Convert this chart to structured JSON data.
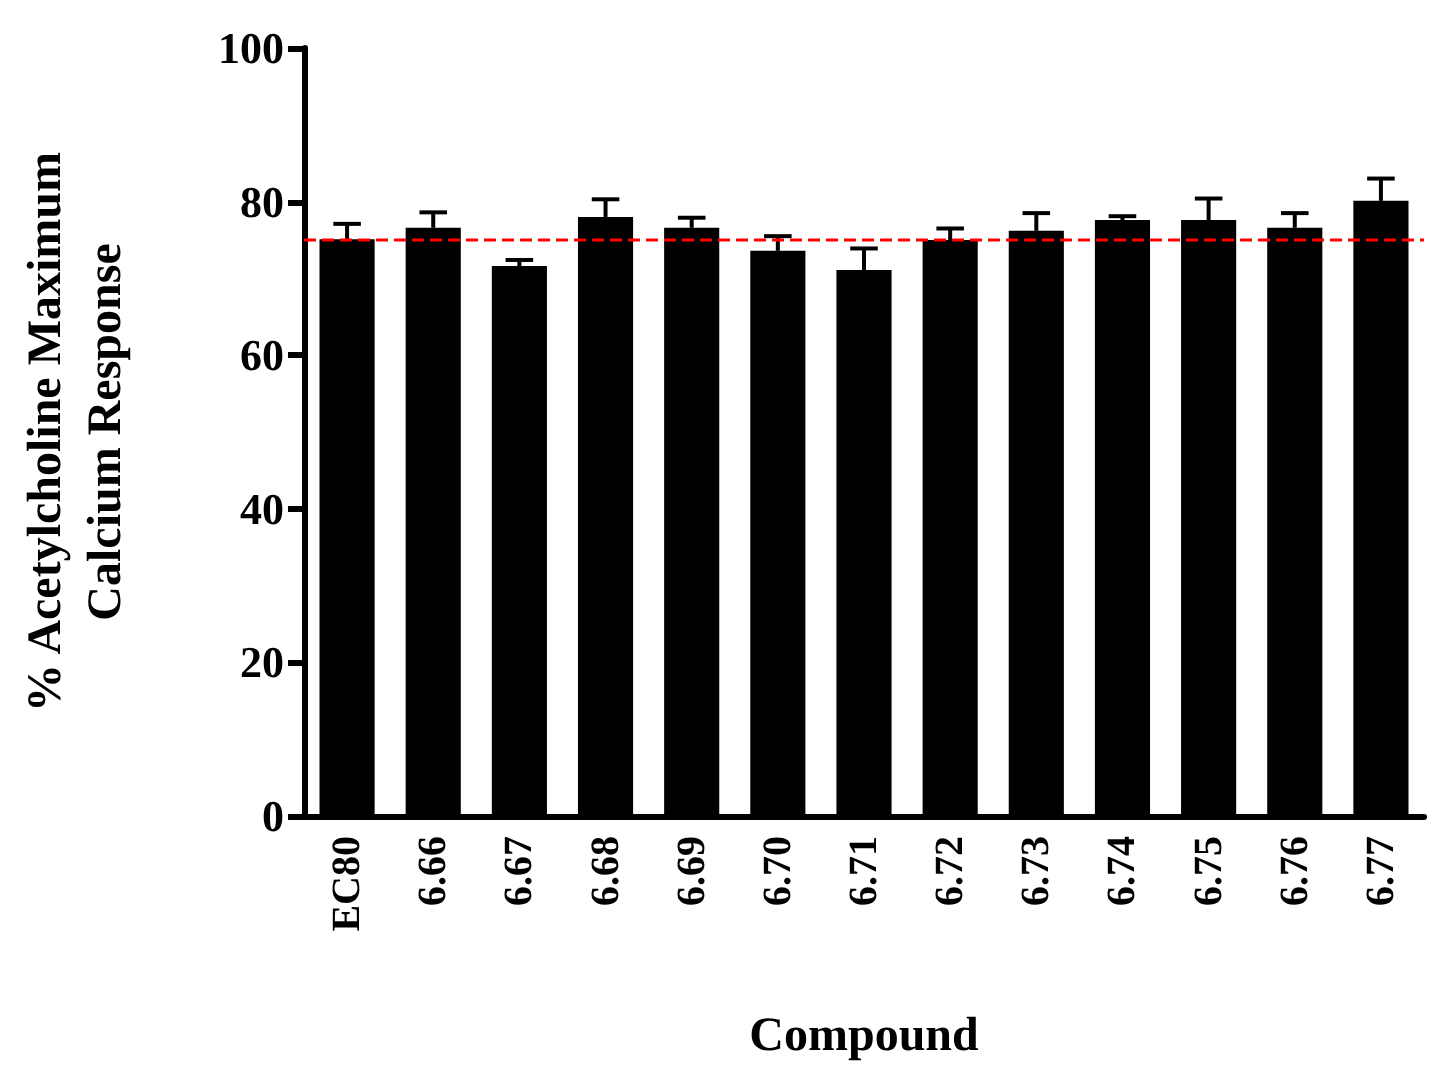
{
  "chart_data": {
    "type": "bar",
    "xlabel": "Compound",
    "ylabel": "% Acetylcholine Maximum\nCalcium Response",
    "categories": [
      "EC80",
      "6.66",
      "6.67",
      "6.68",
      "6.69",
      "6.70",
      "6.71",
      "6.72",
      "6.73",
      "6.74",
      "6.75",
      "6.76",
      "6.77"
    ],
    "values": [
      75.1,
      76.6,
      71.6,
      78.0,
      76.6,
      73.6,
      71.1,
      75.0,
      76.2,
      77.6,
      77.6,
      76.6,
      80.1
    ],
    "errors": [
      2.0,
      2.0,
      0.8,
      2.3,
      1.3,
      1.9,
      2.8,
      1.5,
      2.3,
      0.5,
      2.8,
      1.9,
      2.9
    ],
    "color": "#000000",
    "ylim": [
      0,
      100
    ],
    "yticks": [
      0,
      20,
      40,
      60,
      80,
      100
    ],
    "grid": false,
    "ref_lines": [
      {
        "axis": "y",
        "value": 75,
        "color": "#ff0000",
        "line_style": "dashed"
      }
    ]
  }
}
